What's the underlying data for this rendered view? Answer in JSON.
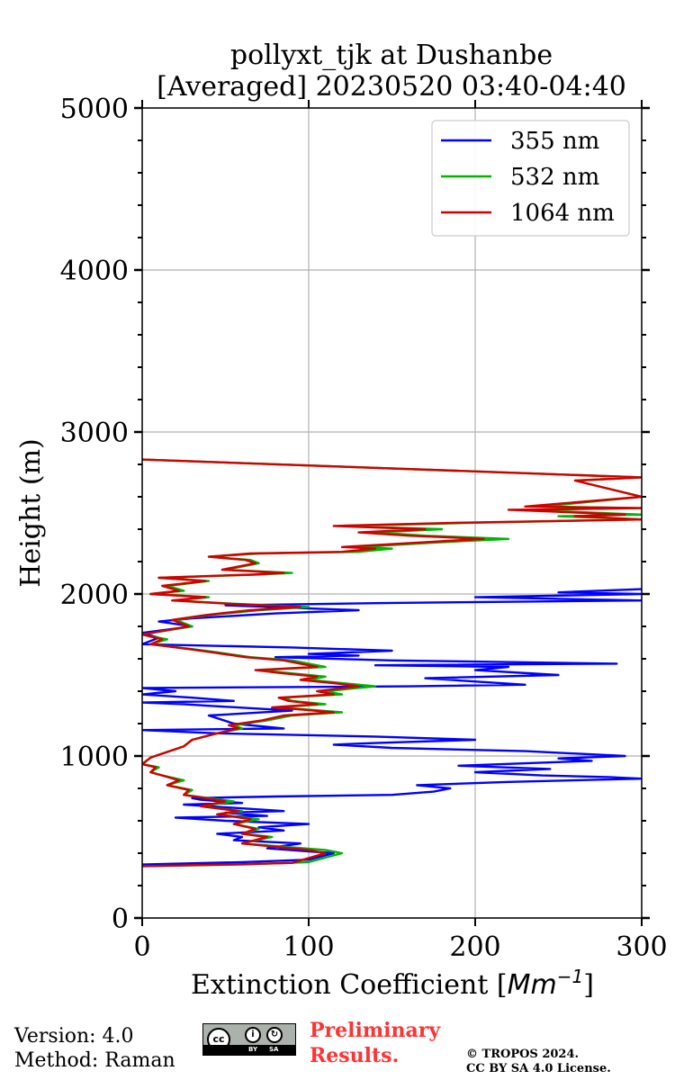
{
  "chart_data": {
    "type": "line",
    "title_line1": "pollyxt_tjk at Dushanbe",
    "title_line2": "[Averaged] 20230520 03:40-04:40",
    "xlabel_text": "Extinction Coefficient [",
    "xlabel_unit": "Mm",
    "xlabel_exp": "−1",
    "ylabel": "Height (m)",
    "xlim": [
      0,
      300
    ],
    "ylim": [
      0,
      5000
    ],
    "xticks": [
      "0",
      "100",
      "200",
      "300"
    ],
    "yticks": [
      "0",
      "1000",
      "2000",
      "3000",
      "4000",
      "5000"
    ],
    "grid": true,
    "legend_position": "top-right",
    "series": [
      {
        "name": "355 nm",
        "color": "#0000ff",
        "points": [
          [
            0,
            330
          ],
          [
            60,
            345
          ],
          [
            100,
            360
          ],
          [
            115,
            400
          ],
          [
            75,
            430
          ],
          [
            95,
            460
          ],
          [
            55,
            480
          ],
          [
            60,
            500
          ],
          [
            45,
            520
          ],
          [
            85,
            540
          ],
          [
            70,
            560
          ],
          [
            100,
            580
          ],
          [
            50,
            600
          ],
          [
            20,
            620
          ],
          [
            75,
            630
          ],
          [
            50,
            650
          ],
          [
            85,
            660
          ],
          [
            55,
            680
          ],
          [
            25,
            700
          ],
          [
            60,
            710
          ],
          [
            35,
            730
          ],
          [
            30,
            740
          ],
          [
            80,
            750
          ],
          [
            150,
            760
          ],
          [
            175,
            780
          ],
          [
            185,
            800
          ],
          [
            165,
            820
          ],
          [
            220,
            840
          ],
          [
            300,
            860
          ],
          [
            280,
            870
          ],
          [
            240,
            880
          ],
          [
            200,
            900
          ],
          [
            245,
            920
          ],
          [
            190,
            940
          ],
          [
            270,
            970
          ],
          [
            250,
            985
          ],
          [
            290,
            1000
          ],
          [
            230,
            1030
          ],
          [
            150,
            1050
          ],
          [
            115,
            1070
          ],
          [
            140,
            1080
          ],
          [
            200,
            1100
          ],
          [
            140,
            1120
          ],
          [
            45,
            1140
          ],
          [
            0,
            1160
          ],
          [
            85,
            1170
          ],
          [
            55,
            1200
          ],
          [
            40,
            1250
          ],
          [
            90,
            1280
          ],
          [
            40,
            1310
          ],
          [
            25,
            1320
          ],
          [
            0,
            1330
          ],
          [
            55,
            1340
          ],
          [
            30,
            1360
          ],
          [
            0,
            1380
          ],
          [
            20,
            1400
          ],
          [
            0,
            1420
          ],
          [
            160,
            1430
          ],
          [
            230,
            1440
          ],
          [
            170,
            1480
          ],
          [
            250,
            1500
          ],
          [
            200,
            1530
          ],
          [
            220,
            1550
          ],
          [
            140,
            1560
          ],
          [
            285,
            1570
          ],
          [
            150,
            1590
          ],
          [
            80,
            1610
          ],
          [
            130,
            1620
          ],
          [
            100,
            1630
          ],
          [
            150,
            1650
          ],
          [
            90,
            1670
          ],
          [
            0,
            1690
          ],
          [
            10,
            1730
          ],
          [
            0,
            1760
          ],
          [
            30,
            1800
          ],
          [
            10,
            1830
          ],
          [
            30,
            1850
          ],
          [
            80,
            1880
          ],
          [
            130,
            1900
          ],
          [
            50,
            1930
          ],
          [
            150,
            1945
          ],
          [
            300,
            1960
          ],
          [
            200,
            1980
          ],
          [
            300,
            2000
          ],
          [
            250,
            2010
          ],
          [
            300,
            2030
          ]
        ]
      },
      {
        "name": "532 nm",
        "color": "#00b400",
        "points": [
          [
            0,
            320
          ],
          [
            60,
            330
          ],
          [
            100,
            345
          ],
          [
            120,
            400
          ],
          [
            110,
            420
          ],
          [
            85,
            440
          ],
          [
            60,
            460
          ],
          [
            78,
            500
          ],
          [
            60,
            520
          ],
          [
            70,
            550
          ],
          [
            55,
            580
          ],
          [
            70,
            610
          ],
          [
            45,
            640
          ],
          [
            60,
            660
          ],
          [
            35,
            690
          ],
          [
            55,
            720
          ],
          [
            40,
            740
          ],
          [
            25,
            760
          ],
          [
            30,
            790
          ],
          [
            15,
            820
          ],
          [
            25,
            850
          ],
          [
            12,
            880
          ],
          [
            5,
            900
          ],
          [
            10,
            930
          ],
          [
            0,
            950
          ],
          [
            5,
            990
          ],
          [
            25,
            1060
          ],
          [
            30,
            1100
          ],
          [
            45,
            1140
          ],
          [
            60,
            1170
          ],
          [
            55,
            1190
          ],
          [
            75,
            1220
          ],
          [
            90,
            1250
          ],
          [
            120,
            1270
          ],
          [
            95,
            1290
          ],
          [
            80,
            1300
          ],
          [
            110,
            1320
          ],
          [
            90,
            1340
          ],
          [
            85,
            1360
          ],
          [
            120,
            1380
          ],
          [
            110,
            1400
          ],
          [
            140,
            1430
          ],
          [
            120,
            1450
          ],
          [
            100,
            1470
          ],
          [
            110,
            1490
          ],
          [
            90,
            1510
          ],
          [
            70,
            1530
          ],
          [
            110,
            1550
          ],
          [
            100,
            1570
          ],
          [
            90,
            1590
          ],
          [
            65,
            1610
          ],
          [
            45,
            1640
          ],
          [
            30,
            1660
          ],
          [
            5,
            1690
          ],
          [
            15,
            1720
          ],
          [
            0,
            1750
          ],
          [
            30,
            1800
          ],
          [
            20,
            1840
          ],
          [
            40,
            1870
          ],
          [
            70,
            1900
          ],
          [
            100,
            1920
          ],
          [
            55,
            1940
          ],
          [
            20,
            1960
          ],
          [
            40,
            1980
          ],
          [
            5,
            2000
          ],
          [
            25,
            2020
          ],
          [
            15,
            2050
          ],
          [
            40,
            2080
          ],
          [
            10,
            2100
          ],
          [
            70,
            2120
          ],
          [
            90,
            2130
          ],
          [
            50,
            2150
          ],
          [
            60,
            2170
          ],
          [
            70,
            2190
          ],
          [
            65,
            2210
          ],
          [
            40,
            2230
          ],
          [
            70,
            2250
          ],
          [
            130,
            2260
          ],
          [
            150,
            2280
          ],
          [
            130,
            2290
          ],
          [
            180,
            2320
          ],
          [
            220,
            2340
          ],
          [
            170,
            2360
          ],
          [
            140,
            2380
          ],
          [
            180,
            2400
          ],
          [
            120,
            2420
          ],
          [
            200,
            2440
          ],
          [
            300,
            2460
          ],
          [
            250,
            2480
          ],
          [
            300,
            2490
          ],
          [
            230,
            2520
          ],
          [
            300,
            2530
          ],
          [
            240,
            2540
          ],
          [
            300,
            2600
          ],
          [
            260,
            2700
          ],
          [
            300,
            2720
          ],
          [
            0,
            2830
          ]
        ]
      },
      {
        "name": "1064 nm",
        "color": "#d00000",
        "points": [
          [
            0,
            320
          ],
          [
            50,
            330
          ],
          [
            90,
            340
          ],
          [
            110,
            400
          ],
          [
            100,
            420
          ],
          [
            80,
            440
          ],
          [
            60,
            460
          ],
          [
            75,
            500
          ],
          [
            60,
            520
          ],
          [
            68,
            550
          ],
          [
            55,
            580
          ],
          [
            65,
            610
          ],
          [
            45,
            640
          ],
          [
            58,
            660
          ],
          [
            35,
            690
          ],
          [
            50,
            720
          ],
          [
            38,
            740
          ],
          [
            25,
            760
          ],
          [
            28,
            790
          ],
          [
            15,
            820
          ],
          [
            22,
            850
          ],
          [
            12,
            880
          ],
          [
            5,
            900
          ],
          [
            8,
            930
          ],
          [
            0,
            950
          ],
          [
            5,
            990
          ],
          [
            25,
            1060
          ],
          [
            30,
            1100
          ],
          [
            45,
            1140
          ],
          [
            58,
            1170
          ],
          [
            52,
            1190
          ],
          [
            72,
            1220
          ],
          [
            85,
            1250
          ],
          [
            115,
            1270
          ],
          [
            92,
            1290
          ],
          [
            78,
            1300
          ],
          [
            105,
            1320
          ],
          [
            88,
            1340
          ],
          [
            82,
            1360
          ],
          [
            115,
            1380
          ],
          [
            105,
            1400
          ],
          [
            130,
            1430
          ],
          [
            115,
            1450
          ],
          [
            95,
            1470
          ],
          [
            105,
            1490
          ],
          [
            85,
            1510
          ],
          [
            68,
            1530
          ],
          [
            105,
            1550
          ],
          [
            95,
            1570
          ],
          [
            85,
            1590
          ],
          [
            62,
            1610
          ],
          [
            42,
            1640
          ],
          [
            28,
            1660
          ],
          [
            5,
            1690
          ],
          [
            12,
            1720
          ],
          [
            0,
            1750
          ],
          [
            28,
            1800
          ],
          [
            18,
            1840
          ],
          [
            38,
            1870
          ],
          [
            65,
            1900
          ],
          [
            95,
            1920
          ],
          [
            52,
            1940
          ],
          [
            18,
            1960
          ],
          [
            38,
            1980
          ],
          [
            5,
            2000
          ],
          [
            22,
            2020
          ],
          [
            12,
            2050
          ],
          [
            38,
            2080
          ],
          [
            10,
            2100
          ],
          [
            65,
            2120
          ],
          [
            85,
            2130
          ],
          [
            48,
            2150
          ],
          [
            58,
            2170
          ],
          [
            68,
            2190
          ],
          [
            62,
            2210
          ],
          [
            40,
            2230
          ],
          [
            65,
            2250
          ],
          [
            120,
            2260
          ],
          [
            140,
            2280
          ],
          [
            120,
            2290
          ],
          [
            170,
            2320
          ],
          [
            205,
            2340
          ],
          [
            160,
            2360
          ],
          [
            130,
            2380
          ],
          [
            170,
            2400
          ],
          [
            115,
            2420
          ],
          [
            190,
            2440
          ],
          [
            300,
            2460
          ],
          [
            260,
            2480
          ],
          [
            290,
            2490
          ],
          [
            220,
            2520
          ],
          [
            300,
            2530
          ],
          [
            230,
            2540
          ],
          [
            300,
            2600
          ],
          [
            260,
            2700
          ],
          [
            300,
            2720
          ],
          [
            0,
            2830
          ]
        ]
      }
    ]
  },
  "footer": {
    "version": "Version: 4.0",
    "method": "Method: Raman",
    "cc_label": "cc",
    "cc_by": "BY",
    "cc_sa": "SA",
    "preliminary_line1": "Preliminary",
    "preliminary_line2": "Results.",
    "copyright_line1": "© TROPOS 2024.",
    "copyright_line2": "CC BY SA 4.0 License."
  }
}
